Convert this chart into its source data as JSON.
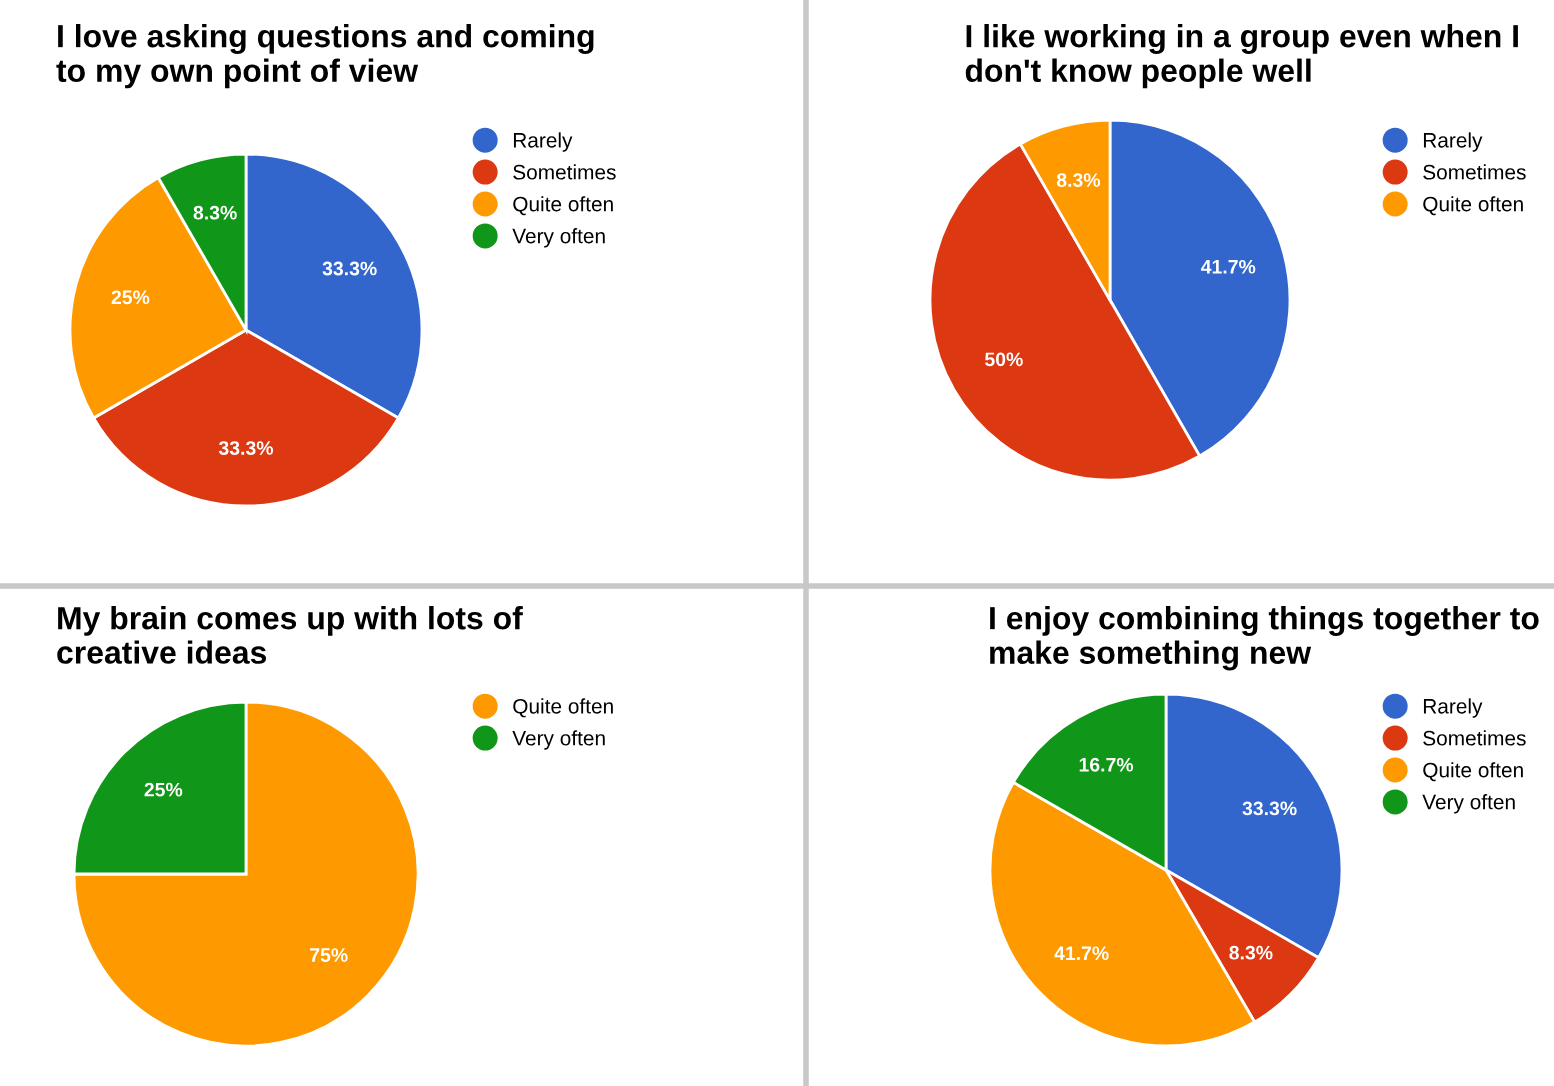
{
  "chart_data": [
    {
      "type": "pie",
      "title": "I love asking questions and coming\nto my own point of view",
      "categories": [
        "Rarely",
        "Sometimes",
        "Quite often",
        "Very often"
      ],
      "values": [
        33.3,
        33.3,
        25,
        8.3
      ],
      "value_labels": [
        "33.3%",
        "33.3%",
        "25%",
        "8.3%"
      ],
      "colors": [
        "#3366cc",
        "#dc3912",
        "#ff9900",
        "#109618"
      ],
      "legend": "right"
    },
    {
      "type": "pie",
      "title": "I like working in a group even when I\ndon't know people well",
      "categories": [
        "Rarely",
        "Sometimes",
        "Quite often"
      ],
      "values": [
        41.7,
        50,
        8.3
      ],
      "value_labels": [
        "41.7%",
        "50%",
        "8.3%"
      ],
      "colors": [
        "#3366cc",
        "#dc3912",
        "#ff9900"
      ],
      "legend": "right"
    },
    {
      "type": "pie",
      "title": "My brain comes up with lots of\ncreative ideas",
      "categories": [
        "Quite often",
        "Very often"
      ],
      "values": [
        75,
        25
      ],
      "value_labels": [
        "75%",
        "25%"
      ],
      "colors": [
        "#ff9900",
        "#109618"
      ],
      "legend": "right"
    },
    {
      "type": "pie",
      "title": "I enjoy combining things together to\nmake something new",
      "categories": [
        "Rarely",
        "Sometimes",
        "Quite often",
        "Very often"
      ],
      "values": [
        33.3,
        8.3,
        41.7,
        16.7
      ],
      "value_labels": [
        "33.3%",
        "8.3%",
        "41.7%",
        "16.7%"
      ],
      "colors": [
        "#3366cc",
        "#dc3912",
        "#ff9900",
        "#109618"
      ],
      "legend": "right"
    }
  ]
}
